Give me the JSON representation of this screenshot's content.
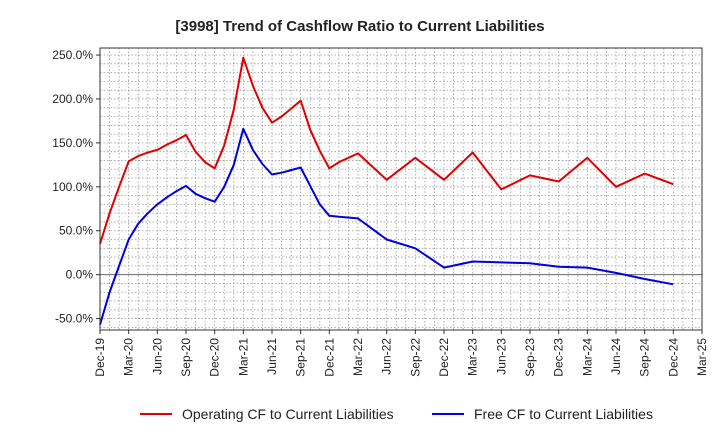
{
  "chart_data": {
    "type": "line",
    "title": "[3998]  Trend of Cashflow Ratio to Current Liabilities",
    "xlabel": "",
    "ylabel": "",
    "x_ticks": [
      "Dec-19",
      "Mar-20",
      "Jun-20",
      "Sep-20",
      "Dec-20",
      "Mar-21",
      "Jun-21",
      "Sep-21",
      "Dec-21",
      "Mar-22",
      "Jun-22",
      "Sep-22",
      "Dec-22",
      "Mar-23",
      "Jun-23",
      "Sep-23",
      "Dec-23",
      "Mar-24",
      "Jun-24",
      "Sep-24",
      "Dec-24",
      "Mar-25"
    ],
    "y_ticks": [
      "250.0%",
      "200.0%",
      "150.0%",
      "100.0%",
      "50.0%",
      "0.0%",
      "-50.0%"
    ],
    "y_tick_values": [
      250,
      200,
      150,
      100,
      50,
      0,
      -50
    ],
    "ylim": [
      -63,
      258
    ],
    "grid": true,
    "legend_position": "bottom",
    "x_months": [
      0,
      1,
      2,
      3,
      4,
      5,
      6,
      7,
      8,
      9,
      10,
      11,
      12,
      13,
      14,
      15,
      16,
      17,
      18,
      19,
      20,
      21,
      22,
      23,
      24,
      25,
      27,
      30,
      33,
      36,
      39,
      42,
      45,
      48,
      51,
      54,
      57,
      60
    ],
    "series": [
      {
        "name": "Operating CF to Current Liabilities",
        "color": "#e00000",
        "x_months": [
          0,
          1,
          2,
          3,
          4,
          5,
          6,
          7,
          8,
          9,
          10,
          11,
          12,
          13,
          14,
          15,
          16,
          17,
          18,
          19,
          20,
          21,
          22,
          23,
          24,
          25,
          27,
          30,
          33,
          36,
          39,
          42,
          45,
          48,
          51,
          54,
          57,
          60
        ],
        "values": [
          35,
          70,
          100,
          129,
          135,
          139,
          142,
          148,
          153,
          159,
          140,
          128,
          121,
          147,
          188,
          247,
          215,
          190,
          173,
          180,
          189,
          198,
          165,
          141,
          121,
          128,
          138,
          108,
          133,
          108,
          139,
          97,
          113,
          106,
          133,
          100,
          115,
          103
        ]
      },
      {
        "name": "Free CF to Current Liabilities",
        "color": "#0000e0",
        "x_months": [
          0,
          1,
          2,
          3,
          4,
          5,
          6,
          7,
          8,
          9,
          10,
          11,
          12,
          13,
          14,
          15,
          16,
          17,
          18,
          19,
          20,
          21,
          22,
          23,
          24,
          25,
          27,
          30,
          33,
          36,
          39,
          42,
          45,
          48,
          51,
          54,
          57,
          60
        ],
        "values": [
          -57,
          -20,
          10,
          40,
          58,
          70,
          80,
          88,
          95,
          101,
          92,
          87,
          83,
          100,
          125,
          166,
          142,
          126,
          114,
          116,
          119,
          122,
          101,
          80,
          67,
          66,
          64,
          40,
          30,
          8,
          15,
          14,
          13,
          9,
          8,
          2,
          -5,
          -11
        ]
      }
    ]
  }
}
